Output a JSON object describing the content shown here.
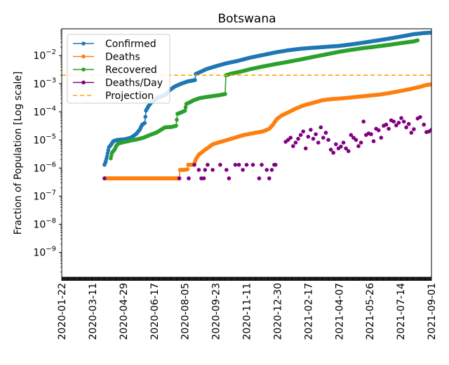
{
  "chart_data": {
    "type": "line",
    "title": "Botswana",
    "xlabel": "",
    "ylabel": "Fraction of Population [Log scale]",
    "yscale": "log",
    "ylim": [
      1.3e-10,
      0.09
    ],
    "xlim": [
      "2020-01-22",
      "2021-09-01"
    ],
    "x_tick_labels": [
      "2020-01-22",
      "2020-03-11",
      "2020-04-29",
      "2020-06-17",
      "2020-08-05",
      "2020-09-23",
      "2020-11-11",
      "2020-12-30",
      "2021-02-17",
      "2021-04-07",
      "2021-05-26",
      "2021-07-14",
      "2021-09-01"
    ],
    "y_tick_labels": [
      {
        "value": 1e-09,
        "base": "10",
        "exp": "−9"
      },
      {
        "value": 1e-08,
        "base": "10",
        "exp": "−8"
      },
      {
        "value": 1e-07,
        "base": "10",
        "exp": "−7"
      },
      {
        "value": 1e-06,
        "base": "10",
        "exp": "−6"
      },
      {
        "value": 1e-05,
        "base": "10",
        "exp": "−5"
      },
      {
        "value": 0.0001,
        "base": "10",
        "exp": "−4"
      },
      {
        "value": 0.001,
        "base": "10",
        "exp": "−3"
      },
      {
        "value": 0.01,
        "base": "10",
        "exp": "−2"
      }
    ],
    "legend_position": "top-left",
    "grid": false,
    "series": [
      {
        "name": "Confirmed",
        "color": "#1f77b4",
        "style": "line-marker",
        "points_day_value": [
          [
            68,
            1.3e-06
          ],
          [
            70,
            1.7e-06
          ],
          [
            72,
            2.6e-06
          ],
          [
            75,
            5.5e-06
          ],
          [
            78,
            6.5e-06
          ],
          [
            82,
            9e-06
          ],
          [
            88,
            1e-05
          ],
          [
            100,
            1.05e-05
          ],
          [
            110,
            1.2e-05
          ],
          [
            118,
            1.6e-05
          ],
          [
            124,
            2.3e-05
          ],
          [
            128,
            3.5e-05
          ],
          [
            132,
            4e-05
          ],
          [
            134,
            0.00011
          ],
          [
            138,
            0.00016
          ],
          [
            142,
            0.00021
          ],
          [
            148,
            0.00026
          ],
          [
            154,
            0.00033
          ],
          [
            160,
            0.00036
          ],
          [
            166,
            0.00042
          ],
          [
            172,
            0.0006
          ],
          [
            180,
            0.0008
          ],
          [
            190,
            0.001
          ],
          [
            200,
            0.0012
          ],
          [
            208,
            0.0013
          ],
          [
            212,
            0.00135
          ],
          [
            213,
            0.0022
          ],
          [
            220,
            0.0026
          ],
          [
            230,
            0.0033
          ],
          [
            245,
            0.0042
          ],
          [
            260,
            0.0052
          ],
          [
            280,
            0.0065
          ],
          [
            300,
            0.0085
          ],
          [
            320,
            0.0105
          ],
          [
            340,
            0.013
          ],
          [
            360,
            0.0155
          ],
          [
            380,
            0.0175
          ],
          [
            400,
            0.019
          ],
          [
            420,
            0.0205
          ],
          [
            440,
            0.022
          ],
          [
            460,
            0.025
          ],
          [
            480,
            0.029
          ],
          [
            500,
            0.034
          ],
          [
            520,
            0.04
          ],
          [
            540,
            0.048
          ],
          [
            560,
            0.058
          ],
          [
            575,
            0.063
          ],
          [
            588,
            0.066
          ]
        ]
      },
      {
        "name": "Deaths",
        "color": "#ff7f0e",
        "style": "line-marker",
        "points_day_value": [
          [
            68,
            4.3e-07
          ],
          [
            187,
            4.3e-07
          ],
          [
            188,
            8.6e-07
          ],
          [
            195,
            8.6e-07
          ],
          [
            200,
            9e-07
          ],
          [
            201,
            1.3e-06
          ],
          [
            210,
            1.3e-06
          ],
          [
            212,
            1.7e-06
          ],
          [
            214,
            2.2e-06
          ],
          [
            218,
            3e-06
          ],
          [
            222,
            3.5e-06
          ],
          [
            228,
            4.5e-06
          ],
          [
            234,
            5.5e-06
          ],
          [
            240,
            7e-06
          ],
          [
            250,
            8.2e-06
          ],
          [
            260,
            9.5e-06
          ],
          [
            275,
            1.2e-05
          ],
          [
            290,
            1.5e-05
          ],
          [
            305,
            1.75e-05
          ],
          [
            320,
            2e-05
          ],
          [
            330,
            2.5e-05
          ],
          [
            336,
            3.5e-05
          ],
          [
            342,
            5.5e-05
          ],
          [
            350,
            7.5e-05
          ],
          [
            360,
            9.5e-05
          ],
          [
            372,
            0.00013
          ],
          [
            385,
            0.00017
          ],
          [
            400,
            0.00021
          ],
          [
            415,
            0.00026
          ],
          [
            430,
            0.000285
          ],
          [
            445,
            0.0003
          ],
          [
            460,
            0.000325
          ],
          [
            475,
            0.00035
          ],
          [
            490,
            0.00038
          ],
          [
            505,
            0.00041
          ],
          [
            520,
            0.00046
          ],
          [
            540,
            0.00056
          ],
          [
            555,
            0.00065
          ],
          [
            570,
            0.00078
          ],
          [
            580,
            0.0009
          ],
          [
            588,
            0.00095
          ]
        ]
      },
      {
        "name": "Recovered",
        "color": "#2ca02c",
        "style": "line-marker",
        "points_day_value": [
          [
            78,
            2.2e-06
          ],
          [
            80,
            3.5e-06
          ],
          [
            84,
            4.5e-06
          ],
          [
            87,
            6.3e-06
          ],
          [
            90,
            7.5e-06
          ],
          [
            100,
            8.5e-06
          ],
          [
            110,
            9.5e-06
          ],
          [
            120,
            1.05e-05
          ],
          [
            130,
            1.2e-05
          ],
          [
            140,
            1.5e-05
          ],
          [
            150,
            1.8e-05
          ],
          [
            158,
            2.3e-05
          ],
          [
            164,
            2.8e-05
          ],
          [
            175,
            2.9e-05
          ],
          [
            182,
            3.2e-05
          ],
          [
            184,
            8.5e-05
          ],
          [
            190,
            9.5e-05
          ],
          [
            196,
            0.00011
          ],
          [
            198,
            0.00019
          ],
          [
            204,
            0.00022
          ],
          [
            210,
            0.00026
          ],
          [
            220,
            0.00031
          ],
          [
            235,
            0.00035
          ],
          [
            250,
            0.00039
          ],
          [
            260,
            0.00043
          ],
          [
            261,
            0.002
          ],
          [
            270,
            0.0023
          ],
          [
            285,
            0.0027
          ],
          [
            300,
            0.0033
          ],
          [
            320,
            0.0041
          ],
          [
            340,
            0.005
          ],
          [
            360,
            0.006
          ],
          [
            380,
            0.0073
          ],
          [
            400,
            0.009
          ],
          [
            420,
            0.011
          ],
          [
            440,
            0.0135
          ],
          [
            460,
            0.016
          ],
          [
            480,
            0.0185
          ],
          [
            500,
            0.021
          ],
          [
            520,
            0.024
          ],
          [
            540,
            0.028
          ],
          [
            560,
            0.032
          ],
          [
            566,
            0.035
          ]
        ]
      },
      {
        "name": "Deaths/Day",
        "color": "#800080",
        "style": "marker",
        "points_day_value": [
          [
            68,
            4.3e-07
          ],
          [
            187,
            4.3e-07
          ],
          [
            202,
            4.3e-07
          ],
          [
            211,
            1.3e-06
          ],
          [
            218,
            8.6e-07
          ],
          [
            222,
            4.3e-07
          ],
          [
            226,
            4.3e-07
          ],
          [
            228,
            8.6e-07
          ],
          [
            232,
            1.3e-06
          ],
          [
            240,
            8.6e-07
          ],
          [
            252,
            1.3e-06
          ],
          [
            262,
            8.6e-07
          ],
          [
            266,
            4.3e-07
          ],
          [
            276,
            1.3e-06
          ],
          [
            282,
            1.3e-06
          ],
          [
            288,
            8.6e-07
          ],
          [
            294,
            1.3e-06
          ],
          [
            304,
            1.3e-06
          ],
          [
            314,
            4.3e-07
          ],
          [
            318,
            1.3e-06
          ],
          [
            326,
            8.6e-07
          ],
          [
            330,
            4.3e-07
          ],
          [
            334,
            8.6e-07
          ],
          [
            338,
            1.3e-06
          ],
          [
            340,
            1.3e-06
          ],
          [
            356,
            8.6e-06
          ],
          [
            360,
            1e-05
          ],
          [
            364,
            1.2e-05
          ],
          [
            368,
            6e-06
          ],
          [
            372,
            8e-06
          ],
          [
            376,
            1.1e-05
          ],
          [
            380,
            1.5e-05
          ],
          [
            384,
            2e-05
          ],
          [
            388,
            5e-06
          ],
          [
            392,
            1.3e-05
          ],
          [
            396,
            2.3e-05
          ],
          [
            400,
            1.1e-05
          ],
          [
            404,
            1.6e-05
          ],
          [
            408,
            8e-06
          ],
          [
            412,
            2.8e-05
          ],
          [
            416,
            1.2e-05
          ],
          [
            420,
            1.8e-05
          ],
          [
            424,
            1e-05
          ],
          [
            428,
            4.5e-06
          ],
          [
            432,
            3.5e-06
          ],
          [
            436,
            7e-06
          ],
          [
            440,
            5e-06
          ],
          [
            444,
            5.8e-06
          ],
          [
            448,
            8e-06
          ],
          [
            452,
            5e-06
          ],
          [
            456,
            4e-06
          ],
          [
            460,
            1.5e-05
          ],
          [
            464,
            1.2e-05
          ],
          [
            468,
            1e-05
          ],
          [
            472,
            6e-06
          ],
          [
            476,
            8e-06
          ],
          [
            480,
            4.5e-05
          ],
          [
            484,
            1.5e-05
          ],
          [
            488,
            1.7e-05
          ],
          [
            492,
            1.6e-05
          ],
          [
            496,
            9e-06
          ],
          [
            500,
            2.5e-05
          ],
          [
            504,
            2.2e-05
          ],
          [
            508,
            1.2e-05
          ],
          [
            512,
            3.2e-05
          ],
          [
            516,
            3.5e-05
          ],
          [
            520,
            2.5e-05
          ],
          [
            524,
            5e-05
          ],
          [
            528,
            4.5e-05
          ],
          [
            532,
            3.3e-05
          ],
          [
            536,
            4.1e-05
          ],
          [
            540,
            6e-05
          ],
          [
            544,
            4.5e-05
          ],
          [
            548,
            2.8e-05
          ],
          [
            552,
            3.7e-05
          ],
          [
            556,
            1.8e-05
          ],
          [
            560,
            2.4e-05
          ],
          [
            566,
            5.8e-05
          ],
          [
            570,
            6.5e-05
          ],
          [
            576,
            3.5e-05
          ],
          [
            580,
            1.9e-05
          ],
          [
            584,
            2e-05
          ],
          [
            588,
            2.3e-05
          ]
        ]
      },
      {
        "name": "Projection",
        "color": "#ffa500",
        "style": "dashed-hline",
        "value": 0.002
      }
    ]
  }
}
